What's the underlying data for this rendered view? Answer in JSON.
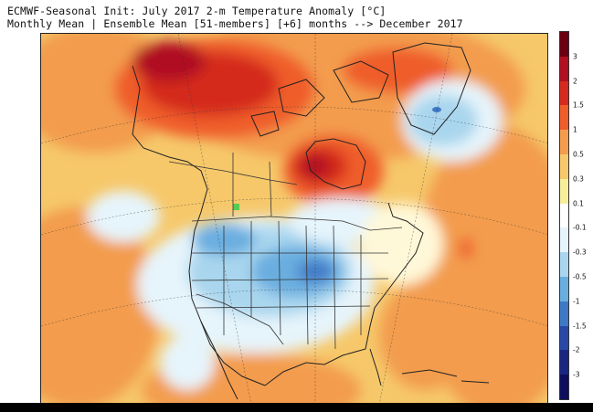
{
  "header": {
    "line1": "ECMWF-Seasonal Init: July 2017 2-m Temperature Anomaly [°C]",
    "line2": "Monthly Mean | Ensemble Mean [51-members] [+6] months --> December 2017"
  },
  "colorbar": {
    "labels": [
      "3",
      "2",
      "1.5",
      "1",
      "0.5",
      "0.3",
      "0.1",
      "-0.1",
      "-0.3",
      "-0.5",
      "-1",
      "-1.5",
      "-2",
      "-3"
    ],
    "colors": [
      "#6b0012",
      "#b01020",
      "#d42a1f",
      "#ef5d2a",
      "#f39c4d",
      "#f6c86a",
      "#f7ee9c",
      "#ffffff",
      "#e6f4fb",
      "#a9d6ee",
      "#6aaee0",
      "#3f79c6",
      "#2a49a6",
      "#1a2780",
      "#0d0f5e"
    ]
  }
}
